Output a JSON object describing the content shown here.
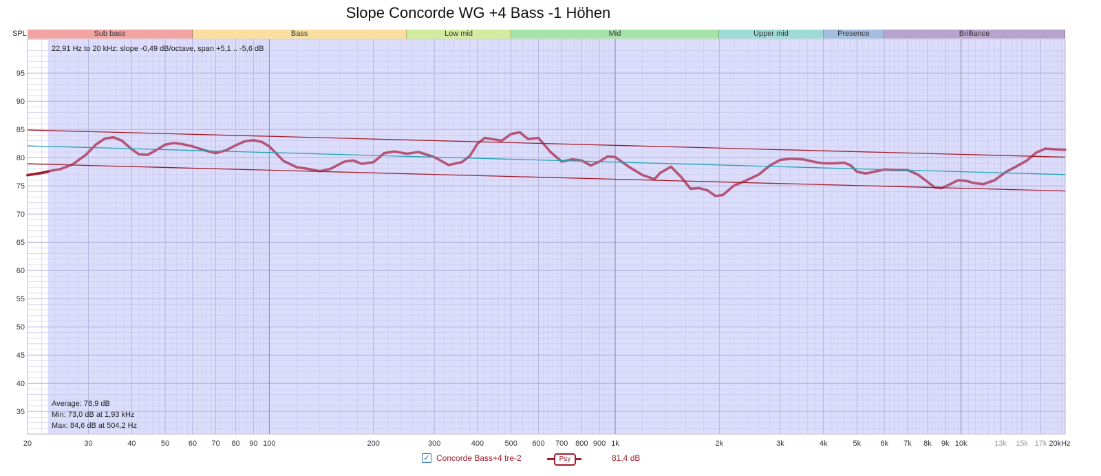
{
  "chart_data": {
    "type": "line",
    "title": "Slope Concorde WG +4 Bass -1 Höhen",
    "ylabel": "SPL",
    "xunit": "kHz",
    "xscale": "log",
    "xlim": [
      20,
      20000
    ],
    "ylim": [
      31,
      101
    ],
    "grid": true,
    "yticks": [
      35,
      40,
      45,
      50,
      55,
      60,
      65,
      70,
      75,
      80,
      85,
      90,
      95
    ],
    "xticks": [
      {
        "v": 20,
        "label": "20"
      },
      {
        "v": 30,
        "label": "30"
      },
      {
        "v": 40,
        "label": "40"
      },
      {
        "v": 50,
        "label": "50"
      },
      {
        "v": 60,
        "label": "60"
      },
      {
        "v": 70,
        "label": "70"
      },
      {
        "v": 80,
        "label": "80"
      },
      {
        "v": 90,
        "label": "90"
      },
      {
        "v": 100,
        "label": "100"
      },
      {
        "v": 200,
        "label": "200"
      },
      {
        "v": 300,
        "label": "300"
      },
      {
        "v": 400,
        "label": "400"
      },
      {
        "v": 500,
        "label": "500"
      },
      {
        "v": 600,
        "label": "600"
      },
      {
        "v": 700,
        "label": "700"
      },
      {
        "v": 800,
        "label": "800"
      },
      {
        "v": 900,
        "label": "900"
      },
      {
        "v": 1000,
        "label": "1k"
      },
      {
        "v": 2000,
        "label": "2k"
      },
      {
        "v": 3000,
        "label": "3k"
      },
      {
        "v": 4000,
        "label": "4k"
      },
      {
        "v": 5000,
        "label": "5k"
      },
      {
        "v": 6000,
        "label": "6k"
      },
      {
        "v": 7000,
        "label": "7k"
      },
      {
        "v": 8000,
        "label": "8k"
      },
      {
        "v": 9000,
        "label": "9k"
      },
      {
        "v": 10000,
        "label": "10k"
      },
      {
        "v": 13000,
        "label": "13k",
        "dim": true
      },
      {
        "v": 15000,
        "label": "15k",
        "dim": true
      },
      {
        "v": 17000,
        "label": "17k",
        "dim": true
      },
      {
        "v": 20000,
        "label": "20kHz"
      }
    ],
    "bands": [
      {
        "label": "Sub bass",
        "from": 20,
        "to": 60,
        "color": "#f4a3a3"
      },
      {
        "label": "Bass",
        "from": 60,
        "to": 250,
        "color": "#fbdf9e"
      },
      {
        "label": "Low mid",
        "from": 250,
        "to": 500,
        "color": "#d3eb9c"
      },
      {
        "label": "Mid",
        "from": 500,
        "to": 2000,
        "color": "#a6e3a8"
      },
      {
        "label": "Upper mid",
        "from": 2000,
        "to": 4000,
        "color": "#9edbd6"
      },
      {
        "label": "Presence",
        "from": 4000,
        "to": 6000,
        "color": "#a4bde0"
      },
      {
        "label": "Brilliance",
        "from": 6000,
        "to": 20000,
        "color": "#b6a4cf"
      }
    ],
    "analysis_range": [
      22.91,
      20000
    ],
    "series": [
      {
        "name": "Concorde Bass+4 tre-2",
        "color": "#b45577",
        "x": [
          20,
          22,
          23,
          25,
          27,
          29.5,
          31.5,
          33.5,
          35.5,
          37.5,
          40,
          42,
          44.5,
          47,
          50,
          53,
          56,
          60,
          65,
          70,
          75,
          80,
          85,
          90,
          95,
          100,
          110,
          120,
          130,
          140,
          150,
          165,
          175,
          185,
          200,
          215,
          230,
          250,
          270,
          300,
          330,
          360,
          380,
          400,
          420,
          440,
          470,
          500,
          530,
          560,
          600,
          650,
          700,
          750,
          800,
          850,
          900,
          950,
          1000,
          1100,
          1200,
          1300,
          1350,
          1450,
          1550,
          1650,
          1750,
          1850,
          1950,
          2050,
          2200,
          2400,
          2600,
          2800,
          3000,
          3200,
          3500,
          3800,
          4000,
          4300,
          4600,
          4800,
          5000,
          5300,
          5600,
          6000,
          6500,
          7000,
          7500,
          8000,
          8400,
          8800,
          9300,
          9800,
          10300,
          10900,
          11600,
          12500,
          13500,
          14500,
          15500,
          16500,
          17500,
          18500,
          20000
        ],
        "y": [
          76.9,
          77.3,
          77.6,
          78.0,
          78.8,
          80.5,
          82.3,
          83.4,
          83.6,
          83.0,
          81.5,
          80.6,
          80.5,
          81.3,
          82.3,
          82.6,
          82.4,
          82.0,
          81.3,
          80.8,
          81.3,
          82.2,
          82.9,
          83.1,
          82.8,
          82.0,
          79.4,
          78.3,
          78.0,
          77.6,
          78.0,
          79.3,
          79.5,
          78.9,
          79.2,
          80.8,
          81.1,
          80.7,
          81.0,
          80.1,
          78.7,
          79.2,
          80.3,
          82.5,
          83.5,
          83.3,
          83.0,
          84.2,
          84.5,
          83.3,
          83.5,
          81.0,
          79.3,
          79.7,
          79.5,
          78.6,
          79.3,
          80.2,
          80.1,
          78.3,
          76.9,
          76.2,
          77.3,
          78.4,
          76.6,
          74.5,
          74.6,
          74.2,
          73.2,
          73.4,
          75.0,
          76.0,
          77.0,
          78.6,
          79.6,
          79.8,
          79.7,
          79.2,
          79.0,
          79.0,
          79.1,
          78.6,
          77.5,
          77.2,
          77.5,
          77.9,
          77.8,
          77.8,
          77.0,
          75.7,
          74.7,
          74.6,
          75.3,
          76.0,
          75.9,
          75.5,
          75.3,
          76.0,
          77.5,
          78.5,
          79.5,
          80.9,
          81.6,
          81.5,
          81.4
        ]
      },
      {
        "name": "Trend",
        "color": "#22a3b5",
        "x": [
          20,
          20000
        ],
        "y": [
          82.1,
          77.0
        ]
      },
      {
        "name": "Upper limit",
        "color": "#a11d2b",
        "x": [
          20,
          20000
        ],
        "y": [
          84.9,
          80.1
        ]
      },
      {
        "name": "Lower limit",
        "color": "#a11d2b",
        "x": [
          20,
          20000
        ],
        "y": [
          78.9,
          74.1
        ]
      }
    ],
    "annotations": {
      "range_text": "22,91 Hz to 20 kHz: slope -0,49 dB/octave, span +5,1 .. -5,6 dB",
      "average": "Average: 78,9 dB",
      "min": "Min: 73,0 dB at 1,93 kHz",
      "max": "Max: 84,6 dB at 504,2 Hz"
    },
    "legend": {
      "position": "bottom",
      "series_label": "Concorde Bass+4 tre-2",
      "checked": true,
      "smoothing_label": "Psy",
      "level": "81,4 dB"
    }
  }
}
